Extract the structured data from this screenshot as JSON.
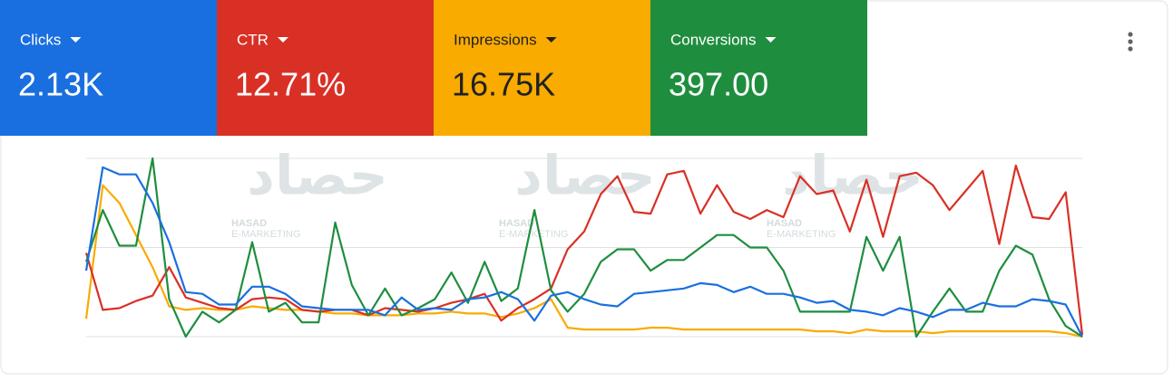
{
  "metrics": [
    {
      "label": "Clicks",
      "value": "2.13K",
      "color": "#1a6fe0",
      "text_color": "#ffffff"
    },
    {
      "label": "CTR",
      "value": "12.71%",
      "color": "#d93025",
      "text_color": "#ffffff"
    },
    {
      "label": "Impressions",
      "value": "16.75K",
      "color": "#f9ab00",
      "text_color": "#202124"
    },
    {
      "label": "Conversions",
      "value": "397.00",
      "color": "#1e8e3e",
      "text_color": "#ffffff"
    }
  ],
  "watermark": {
    "arabic": "حصاد",
    "name": "HASAD",
    "tagline": "E-MARKETING"
  },
  "chart_data": {
    "type": "line",
    "ylim": [
      0,
      100
    ],
    "yticks": [
      0,
      50,
      100
    ],
    "grid": true,
    "series": [
      {
        "color": "#f9ab00",
        "values": [
          10,
          85,
          75,
          57,
          39,
          17,
          15,
          16,
          15,
          15,
          17,
          16,
          15,
          15,
          14,
          13,
          13,
          12,
          12,
          12,
          13,
          13,
          14,
          13,
          13,
          11,
          13,
          16,
          21,
          5,
          4,
          4,
          4,
          4,
          5,
          5,
          4,
          4,
          4,
          4,
          4,
          4,
          4,
          4,
          3,
          3,
          2,
          4,
          3,
          3,
          3,
          2,
          3,
          3,
          3,
          3,
          3,
          3,
          3,
          2,
          0
        ]
      },
      {
        "color": "#d93025",
        "values": [
          47,
          15,
          16,
          20,
          23,
          39,
          22,
          19,
          16,
          15,
          21,
          22,
          21,
          15,
          14,
          15,
          15,
          12,
          16,
          15,
          14,
          16,
          19,
          21,
          24,
          9,
          16,
          21,
          27,
          49,
          59,
          80,
          90,
          70,
          69,
          91,
          93,
          69,
          85,
          70,
          66,
          71,
          67,
          90,
          80,
          82,
          59,
          88,
          56,
          90,
          92,
          85,
          71,
          82,
          93,
          52,
          96,
          67,
          66,
          81,
          1
        ]
      },
      {
        "color": "#1e8e3e",
        "values": [
          42,
          71,
          51,
          51,
          100,
          21,
          0,
          14,
          8,
          15,
          53,
          14,
          19,
          8,
          8,
          64,
          29,
          12,
          27,
          12,
          16,
          21,
          36,
          19,
          42,
          20,
          27,
          71,
          26,
          14,
          24,
          42,
          49,
          49,
          37,
          43,
          43,
          50,
          57,
          57,
          50,
          50,
          37,
          14,
          14,
          14,
          14,
          56,
          37,
          56,
          0,
          14,
          27,
          14,
          14,
          37,
          51,
          46,
          21,
          6,
          0
        ]
      },
      {
        "color": "#1a6fe0",
        "values": [
          37,
          95,
          91,
          91,
          75,
          53,
          25,
          24,
          18,
          18,
          28,
          28,
          24,
          17,
          16,
          15,
          15,
          15,
          12,
          22,
          15,
          16,
          15,
          21,
          22,
          25,
          21,
          9,
          23,
          25,
          21,
          18,
          17,
          24,
          25,
          26,
          27,
          30,
          29,
          25,
          28,
          24,
          24,
          22,
          19,
          20,
          15,
          14,
          12,
          16,
          14,
          11,
          15,
          15,
          19,
          17,
          17,
          21,
          20,
          18,
          0
        ]
      }
    ]
  }
}
